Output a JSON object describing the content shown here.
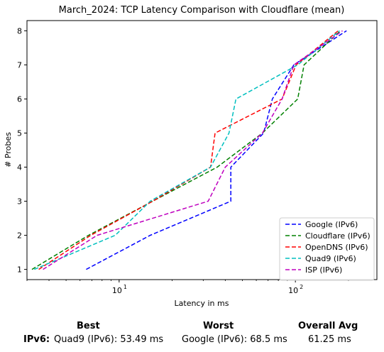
{
  "chart_data": {
    "type": "line",
    "title": "March_2024: TCP Latency Comparison with Cloudflare (mean)",
    "xlabel": "Latency in ms",
    "ylabel": "# Probes",
    "xscale": "log",
    "xlim": [
      3,
      290
    ],
    "ylim": [
      0.7,
      8.3
    ],
    "yticks": [
      1,
      2,
      3,
      4,
      5,
      6,
      7,
      8
    ],
    "xticks_major": [
      10,
      100
    ],
    "xtick_labels": [
      "10",
      "10"
    ],
    "xtick_exponents": [
      "1",
      "2"
    ],
    "grid": false,
    "legend_position": "lower right",
    "series": [
      {
        "name": "Google (IPv6)",
        "color": "#0000ff",
        "points": [
          [
            6.5,
            1
          ],
          [
            15,
            2
          ],
          [
            43,
            3
          ],
          [
            43,
            4
          ],
          [
            66,
            5
          ],
          [
            74,
            6
          ],
          [
            98,
            7
          ],
          [
            195,
            8
          ]
        ]
      },
      {
        "name": "Cloudflare (IPv6)",
        "color": "#008000",
        "points": [
          [
            3.2,
            1
          ],
          [
            6.7,
            2
          ],
          [
            15.5,
            3
          ],
          [
            36,
            4
          ],
          [
            65,
            5
          ],
          [
            103,
            6
          ],
          [
            112,
            7
          ],
          [
            180,
            8
          ]
        ]
      },
      {
        "name": "OpenDNS (IPv6)",
        "color": "#ff0000",
        "points": [
          [
            3.5,
            1
          ],
          [
            6.9,
            2
          ],
          [
            15.5,
            3
          ],
          [
            33,
            4
          ],
          [
            35,
            5
          ],
          [
            84,
            6
          ],
          [
            101,
            7
          ],
          [
            175,
            8
          ]
        ]
      },
      {
        "name": "Quad9 (IPv6)",
        "color": "#00bfbf",
        "points": [
          [
            3.3,
            1
          ],
          [
            9.5,
            2
          ],
          [
            15,
            3
          ],
          [
            33,
            4
          ],
          [
            42,
            5
          ],
          [
            46,
            6
          ],
          [
            103,
            7
          ],
          [
            178,
            8
          ]
        ]
      },
      {
        "name": "ISP (IPv6)",
        "color": "#bf00bf",
        "points": [
          [
            3.7,
            1
          ],
          [
            7.5,
            2
          ],
          [
            32,
            3
          ],
          [
            40,
            4
          ],
          [
            65,
            5
          ],
          [
            84,
            6
          ],
          [
            98,
            7
          ],
          [
            185,
            8
          ]
        ]
      }
    ]
  },
  "summary": {
    "best_heading": "Best",
    "worst_heading": "Worst",
    "avg_heading": "Overall Avg",
    "row_label": "IPv6",
    "row_colon": ":",
    "best_value": "Quad9 (IPv6): 53.49 ms",
    "worst_value": "Google (IPv6): 68.5 ms",
    "avg_value": "61.25 ms"
  }
}
